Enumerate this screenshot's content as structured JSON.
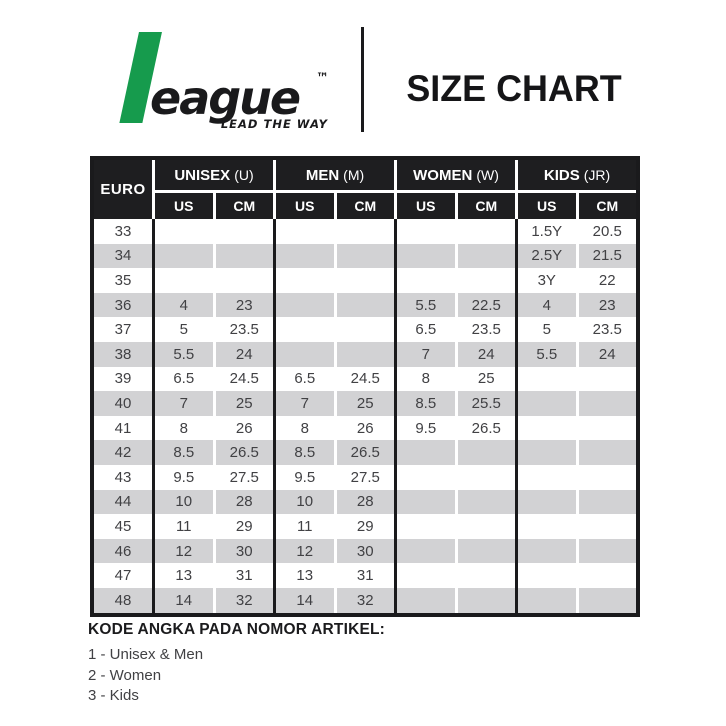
{
  "brand": {
    "wordmark": "eague",
    "tm": "™",
    "tagline": "LEAD THE WAY"
  },
  "page_title": "SIZE CHART",
  "table": {
    "euro_label": "EURO",
    "groups": [
      {
        "name": "UNISEX",
        "abbr": "(U)"
      },
      {
        "name": "MEN",
        "abbr": "(M)"
      },
      {
        "name": "WOMEN",
        "abbr": "(W)"
      },
      {
        "name": "KIDS",
        "abbr": "(JR)"
      }
    ],
    "subheaders": [
      "US",
      "CM"
    ]
  },
  "chart_data": {
    "type": "table",
    "title": "SIZE CHART",
    "column_groups": [
      "EURO",
      "UNISEX (U)",
      "MEN (M)",
      "WOMEN (W)",
      "KIDS (JR)"
    ],
    "columns": [
      "EURO",
      "UNISEX US",
      "UNISEX CM",
      "MEN US",
      "MEN CM",
      "WOMEN US",
      "WOMEN CM",
      "KIDS US",
      "KIDS CM"
    ],
    "rows": [
      [
        "33",
        "",
        "",
        "",
        "",
        "",
        "",
        "1.5Y",
        "20.5"
      ],
      [
        "34",
        "",
        "",
        "",
        "",
        "",
        "",
        "2.5Y",
        "21.5"
      ],
      [
        "35",
        "",
        "",
        "",
        "",
        "",
        "",
        "3Y",
        "22"
      ],
      [
        "36",
        "4",
        "23",
        "",
        "",
        "5.5",
        "22.5",
        "4",
        "23"
      ],
      [
        "37",
        "5",
        "23.5",
        "",
        "",
        "6.5",
        "23.5",
        "5",
        "23.5"
      ],
      [
        "38",
        "5.5",
        "24",
        "",
        "",
        "7",
        "24",
        "5.5",
        "24"
      ],
      [
        "39",
        "6.5",
        "24.5",
        "6.5",
        "24.5",
        "8",
        "25",
        "",
        ""
      ],
      [
        "40",
        "7",
        "25",
        "7",
        "25",
        "8.5",
        "25.5",
        "",
        ""
      ],
      [
        "41",
        "8",
        "26",
        "8",
        "26",
        "9.5",
        "26.5",
        "",
        ""
      ],
      [
        "42",
        "8.5",
        "26.5",
        "8.5",
        "26.5",
        "",
        "",
        "",
        ""
      ],
      [
        "43",
        "9.5",
        "27.5",
        "9.5",
        "27.5",
        "",
        "",
        "",
        ""
      ],
      [
        "44",
        "10",
        "28",
        "10",
        "28",
        "",
        "",
        "",
        ""
      ],
      [
        "45",
        "11",
        "29",
        "11",
        "29",
        "",
        "",
        "",
        ""
      ],
      [
        "46",
        "12",
        "30",
        "12",
        "30",
        "",
        "",
        "",
        ""
      ],
      [
        "47",
        "13",
        "31",
        "13",
        "31",
        "",
        "",
        "",
        ""
      ],
      [
        "48",
        "14",
        "32",
        "14",
        "32",
        "",
        "",
        "",
        ""
      ]
    ]
  },
  "footer": {
    "heading": "KODE ANGKA PADA NOMOR ARTIKEL:",
    "items": [
      "1 - Unisex & Men",
      "2 - Women",
      "3 - Kids"
    ]
  },
  "colors": {
    "header_bg": "#1e1e20",
    "border_black": "#1a1a1c",
    "stripe": "#d2d2d4",
    "cell_text": "#414144",
    "brand_green": "#169b4d"
  }
}
